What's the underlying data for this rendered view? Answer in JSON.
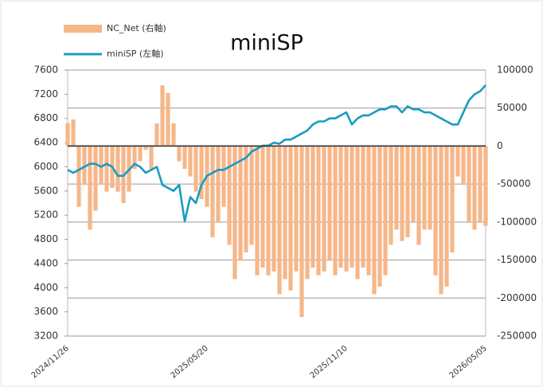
{
  "chart_data": {
    "type": "bar",
    "title": "miniSP",
    "categories": [
      "2024/11/26",
      null,
      null,
      null,
      null,
      null,
      null,
      null,
      null,
      null,
      null,
      null,
      null,
      null,
      null,
      null,
      null,
      null,
      null,
      null,
      null,
      null,
      null,
      null,
      null,
      "2025/05/20",
      null,
      null,
      null,
      null,
      null,
      null,
      null,
      null,
      null,
      null,
      null,
      null,
      null,
      null,
      null,
      null,
      null,
      null,
      null,
      null,
      null,
      null,
      null,
      null,
      "2025/11/10",
      null,
      null,
      null,
      null,
      null,
      null,
      null,
      null,
      null,
      null,
      null,
      null,
      null,
      null,
      null,
      null,
      null,
      null,
      null,
      null,
      null,
      null,
      null,
      null,
      "2026/05/05"
    ],
    "series": [
      {
        "name": "NC_Net (右軸)",
        "type": "bar",
        "axis": "y2",
        "color": "#f5b78a",
        "values": [
          30000,
          35000,
          -80000,
          -50000,
          -110000,
          -85000,
          -50000,
          -60000,
          -55000,
          -60000,
          -75000,
          -60000,
          -30000,
          -20000,
          -5000,
          -30000,
          30000,
          80000,
          70000,
          30000,
          -20000,
          -30000,
          -40000,
          -60000,
          -70000,
          -80000,
          -120000,
          -100000,
          -80000,
          -130000,
          -175000,
          -150000,
          -140000,
          -130000,
          -170000,
          -160000,
          -170000,
          -165000,
          -195000,
          -175000,
          -190000,
          -165000,
          -225000,
          -175000,
          -160000,
          -170000,
          -165000,
          -150000,
          -170000,
          -160000,
          -165000,
          -160000,
          -175000,
          -160000,
          -170000,
          -195000,
          -185000,
          -170000,
          -130000,
          -110000,
          -125000,
          -120000,
          -100000,
          -130000,
          -110000,
          -110000,
          -170000,
          -195000,
          -185000,
          -140000,
          -40000,
          -50000,
          -100000,
          -110000,
          -100000,
          -105000
        ]
      },
      {
        "name": "miniSP (左軸)",
        "type": "line",
        "axis": "y",
        "color": "#1a9bc4",
        "values": [
          5950,
          5900,
          5950,
          6000,
          6050,
          6050,
          6000,
          6050,
          6000,
          5850,
          5850,
          5950,
          6050,
          6000,
          5900,
          5950,
          6000,
          5700,
          5650,
          5600,
          5700,
          5100,
          5500,
          5400,
          5700,
          5850,
          5900,
          5950,
          5950,
          6000,
          6050,
          6100,
          6150,
          6250,
          6300,
          6350,
          6350,
          6400,
          6380,
          6450,
          6450,
          6500,
          6550,
          6600,
          6700,
          6750,
          6750,
          6800,
          6800,
          6850,
          6900,
          6700,
          6800,
          6850,
          6850,
          6900,
          6950,
          6950,
          7000,
          7000,
          6900,
          7000,
          6950,
          6950,
          6900,
          6900,
          6850,
          6800,
          6750,
          6700,
          6700,
          6900,
          7100,
          7200,
          7250,
          7350
        ]
      }
    ],
    "ylim": [
      3200,
      7600
    ],
    "yticks": [
      7600,
      7200,
      6800,
      6400,
      6000,
      5600,
      5200,
      4800,
      4400,
      4000,
      3600,
      3200
    ],
    "y2lim": [
      -250000,
      100000
    ],
    "y2ticks": [
      100000,
      50000,
      0,
      -50000,
      -100000,
      -150000,
      -200000,
      -250000
    ],
    "grid": true
  }
}
